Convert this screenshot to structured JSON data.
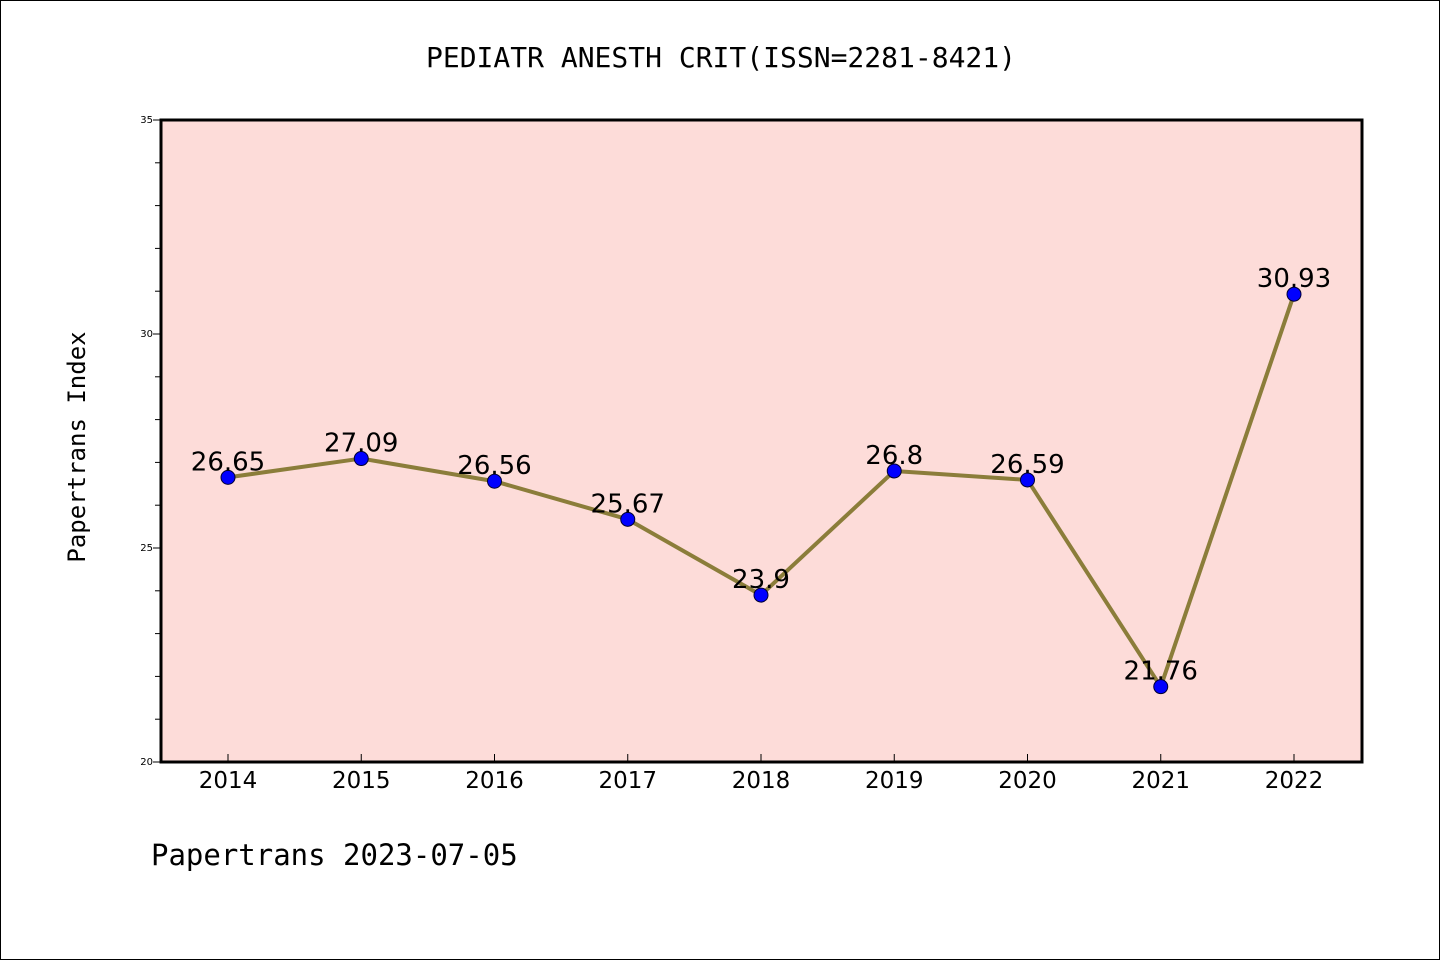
{
  "chart_data": {
    "type": "line",
    "title": "PEDIATR ANESTH CRIT(ISSN=2281-8421)",
    "xlabel": "",
    "ylabel": "Papertrans Index",
    "categories": [
      "2014",
      "2015",
      "2016",
      "2017",
      "2018",
      "2019",
      "2020",
      "2021",
      "2022"
    ],
    "series": [
      {
        "values": [
          26.65,
          27.09,
          26.56,
          25.67,
          23.9,
          26.8,
          26.59,
          21.76,
          30.93
        ],
        "labels": [
          "26.65",
          "27.09",
          "26.56",
          "25.67",
          "23.9",
          "26.8",
          "26.59",
          "21.76",
          "30.93"
        ],
        "line_color": "#8B7D3A",
        "marker_color": "#0000FF"
      }
    ],
    "ylim": [
      20,
      35
    ],
    "yticks": [
      "20",
      "25",
      "30",
      "35"
    ],
    "grid": false,
    "legend": "none",
    "plot_background": "#FDDCD9"
  },
  "footer": {
    "text": "Papertrans 2023-07-05"
  }
}
